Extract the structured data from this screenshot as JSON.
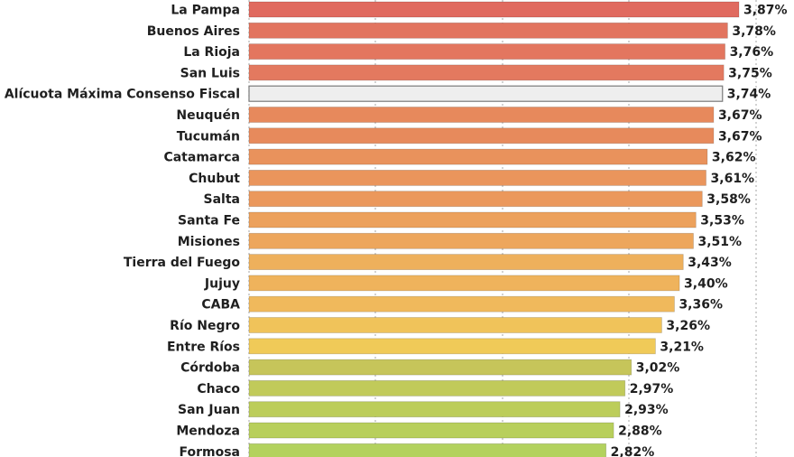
{
  "chart_data": {
    "type": "bar",
    "orientation": "horizontal",
    "categories": [
      "La Pampa",
      "Buenos Aires",
      "La Rioja",
      "San Luis",
      "Alícuota Máxima Consenso Fiscal",
      "Neuquén",
      "Tucumán",
      "Catamarca",
      "Chubut",
      "Salta",
      "Santa Fe",
      "Misiones",
      "Tierra del Fuego",
      "Jujuy",
      "CABA",
      "Río Negro",
      "Entre Ríos",
      "Córdoba",
      "Chaco",
      "San Juan",
      "Mendoza",
      "Formosa"
    ],
    "values": [
      3.87,
      3.78,
      3.76,
      3.75,
      3.74,
      3.67,
      3.67,
      3.62,
      3.61,
      3.58,
      3.53,
      3.51,
      3.43,
      3.4,
      3.36,
      3.26,
      3.21,
      3.02,
      2.97,
      2.93,
      2.88,
      2.82
    ],
    "value_labels": [
      "3,87%",
      "3,78%",
      "3,76%",
      "3,75%",
      "3,74%",
      "3,67%",
      "3,67%",
      "3,62%",
      "3,61%",
      "3,58%",
      "3,53%",
      "3,51%",
      "3,43%",
      "3,40%",
      "3,36%",
      "3,26%",
      "3,21%",
      "3,02%",
      "2,97%",
      "2,93%",
      "2,88%",
      "2,82%"
    ],
    "colors": [
      "#e06a5f",
      "#e2745f",
      "#e3765f",
      "#e3795f",
      "#eeeeee",
      "#e7895c",
      "#e78a5c",
      "#e9925c",
      "#ea955c",
      "#eb985c",
      "#eca15c",
      "#eda65c",
      "#eeb05c",
      "#efb35c",
      "#f0b95c",
      "#f0c35a",
      "#f0ca58",
      "#c6c55a",
      "#c1ca5a",
      "#bccd5a",
      "#b8cf5c",
      "#b3d25e"
    ],
    "highlight": "Alícuota Máxima Consenso Fiscal",
    "grid": true,
    "xlim": [
      0,
      3.87
    ]
  }
}
